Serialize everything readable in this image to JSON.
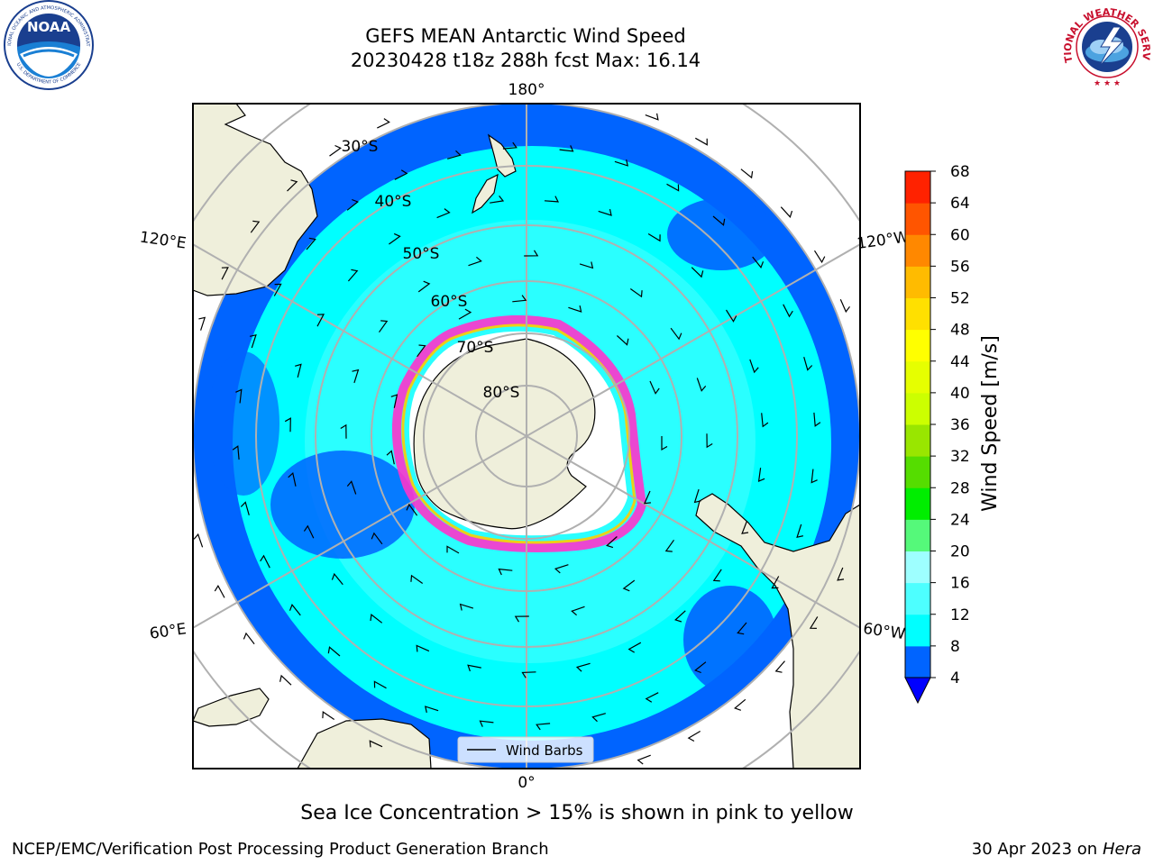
{
  "header": {
    "title_line1": "GEFS MEAN Antarctic Wind Speed",
    "title_line2": "20230428 t18z 288h fcst   Max: 16.14"
  },
  "logos": {
    "left_ring_top": "NATIONAL OCEANIC AND ATMOSPHERIC ADMINISTRATION",
    "left_ring_bottom": "U.S. DEPARTMENT OF COMMERCE",
    "left_center": "NOAA",
    "right_ring": "NATIONAL WEATHER SERVICE"
  },
  "map": {
    "lon_labels": {
      "top": "180°",
      "bottom": "0°",
      "upper_left": "120°E",
      "upper_right": "120°W",
      "lower_left": "60°E",
      "lower_right": "60°W"
    },
    "lat_labels": [
      "30°S",
      "40°S",
      "50°S",
      "60°S",
      "70°S",
      "80°S"
    ],
    "legend_label": "Wind Barbs"
  },
  "colorbar": {
    "label": "Wind Speed [m/s]",
    "ticks": [
      "4",
      "8",
      "12",
      "16",
      "20",
      "24",
      "28",
      "32",
      "36",
      "40",
      "44",
      "48",
      "52",
      "56",
      "60",
      "64",
      "68"
    ],
    "colors": [
      "#0064ff",
      "#00ffff",
      "#4dffff",
      "#9effff",
      "#55f97a",
      "#00ee00",
      "#55dd00",
      "#99e600",
      "#ccff00",
      "#e6ff00",
      "#ffff00",
      "#ffe000",
      "#ffbb00",
      "#ff8800",
      "#ff5500",
      "#ff2200"
    ],
    "extend_color": "#0000ff"
  },
  "caption": "Sea Ice Concentration > 15% is shown in pink to yellow",
  "footer": {
    "left": "NCEP/EMC/Verification Post Processing Product Generation Branch",
    "right_prefix": "30 Apr 2023 on ",
    "right_host": "Hera"
  }
}
